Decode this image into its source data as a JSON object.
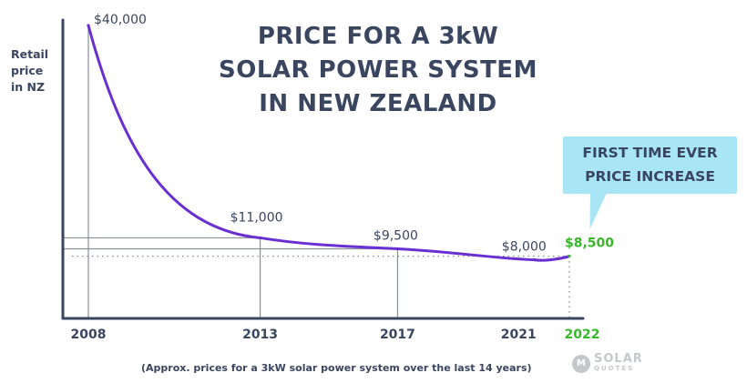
{
  "chart_data": {
    "type": "line",
    "title_lines": [
      "PRICE FOR A 3kW",
      "SOLAR POWER SYSTEM",
      "IN NEW ZEALAND"
    ],
    "ylabel_lines": [
      "Retail",
      "price",
      "in NZ"
    ],
    "x": [
      2008,
      2013,
      2017,
      2021,
      2022
    ],
    "values": [
      40000,
      11000,
      9500,
      8000,
      8500
    ],
    "x_tick_labels": [
      "2008",
      "2013",
      "2017",
      "2021",
      "2022"
    ],
    "data_labels": [
      "$40,000",
      "$11,000",
      "$9,500",
      "$8,000",
      "$8,500"
    ],
    "highlight_x": 2022,
    "callout_lines": [
      "FIRST TIME EVER",
      "PRICE INCREASE"
    ],
    "footnote": "(Approx. prices for a 3kW solar power system over the last 14 years)",
    "colors": {
      "line": "#6a2fd0",
      "highlight": "#36b82a",
      "text": "#3a4560",
      "guides": "#8a8f98",
      "callout_bg": "#a8e6f6"
    }
  },
  "brand": {
    "logo_mark": "M",
    "logo_line1": "SOLAR",
    "logo_line2": "QUOTES"
  }
}
